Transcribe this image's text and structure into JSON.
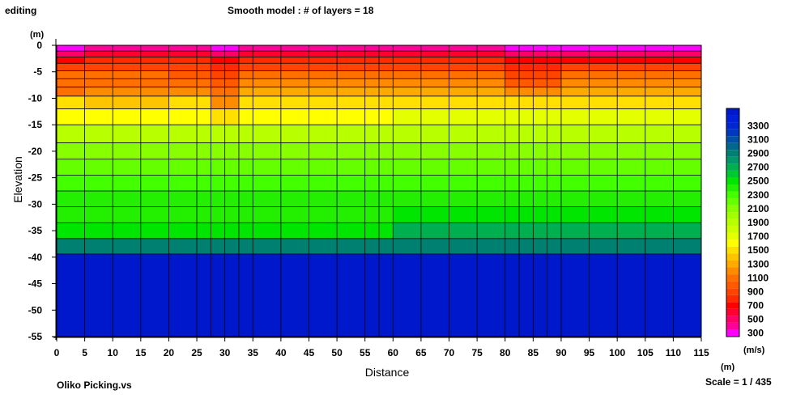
{
  "header": {
    "status": "editing",
    "title": "Smooth model : # of layers = 18"
  },
  "footer": {
    "file_name": "Oliko Picking.vs",
    "scale": "Scale = 1 / 435"
  },
  "chart_data": {
    "type": "heatmap",
    "title": "Smooth model : # of layers = 18",
    "xlabel": "Distance",
    "ylabel": "Elevation",
    "y_unit_label": "(m)",
    "x_unit_label": "(m)",
    "xlim": [
      0,
      115
    ],
    "ylim": [
      -55,
      0
    ],
    "x_ticks": [
      0,
      5,
      10,
      15,
      20,
      25,
      30,
      35,
      40,
      45,
      50,
      55,
      60,
      65,
      70,
      75,
      80,
      85,
      90,
      95,
      100,
      105,
      110,
      115
    ],
    "y_ticks": [
      0,
      -5,
      -10,
      -15,
      -20,
      -25,
      -30,
      -35,
      -40,
      -45,
      -50,
      -55
    ],
    "grid": true,
    "node_x": [
      0,
      5,
      10,
      15,
      20,
      25,
      27.5,
      30,
      32.5,
      35,
      40,
      45,
      50,
      55,
      57.5,
      60,
      65,
      70,
      75,
      80,
      82.5,
      85,
      87.5,
      90,
      95,
      100,
      105,
      110,
      115
    ],
    "layer_depths": [
      0,
      -1.1,
      -2.2,
      -3.4,
      -4.8,
      -6.3,
      -7.9,
      -9.6,
      -12,
      -15,
      -18.4,
      -21.5,
      -24.5,
      -27.5,
      -30.5,
      -33.5,
      -36.5,
      -39.4,
      -55
    ],
    "zones": [
      {
        "x_range": [
          0,
          5
        ],
        "layer_velocities": [
          300,
          500,
          700,
          900,
          1100,
          1100,
          1100,
          1500,
          1600,
          1900,
          2100,
          2200,
          2300,
          2400,
          2400,
          2500,
          2900,
          3500
        ]
      },
      {
        "x_range": [
          5,
          20
        ],
        "layer_velocities": [
          400,
          600,
          800,
          900,
          1100,
          1100,
          1200,
          1400,
          1600,
          1900,
          2100,
          2200,
          2300,
          2400,
          2400,
          2500,
          2900,
          3500
        ]
      },
      {
        "x_range": [
          20,
          27.5
        ],
        "layer_velocities": [
          400,
          600,
          800,
          900,
          1000,
          1100,
          1200,
          1500,
          1600,
          1900,
          2100,
          2200,
          2300,
          2400,
          2400,
          2500,
          2900,
          3500
        ]
      },
      {
        "x_range": [
          27.5,
          32.5
        ],
        "layer_velocities": [
          300,
          500,
          700,
          800,
          900,
          1000,
          1100,
          1200,
          1500,
          1900,
          2100,
          2200,
          2300,
          2400,
          2400,
          2500,
          2900,
          3500
        ]
      },
      {
        "x_range": [
          32.5,
          60
        ],
        "layer_velocities": [
          400,
          600,
          800,
          900,
          1100,
          1200,
          1300,
          1500,
          1600,
          1900,
          2100,
          2200,
          2300,
          2400,
          2400,
          2500,
          2900,
          3500
        ]
      },
      {
        "x_range": [
          60,
          80
        ],
        "layer_velocities": [
          400,
          600,
          800,
          900,
          1100,
          1200,
          1300,
          1500,
          1700,
          1900,
          2100,
          2200,
          2300,
          2400,
          2500,
          2700,
          2900,
          3500
        ]
      },
      {
        "x_range": [
          80,
          90
        ],
        "layer_velocities": [
          300,
          500,
          700,
          800,
          900,
          1000,
          1200,
          1500,
          1700,
          1900,
          2100,
          2200,
          2300,
          2400,
          2500,
          2700,
          2900,
          3500
        ]
      },
      {
        "x_range": [
          90,
          115
        ],
        "layer_velocities": [
          300,
          500,
          700,
          900,
          1100,
          1200,
          1300,
          1500,
          1700,
          1900,
          2100,
          2200,
          2300,
          2400,
          2500,
          2700,
          2900,
          3500
        ]
      }
    ],
    "colorbar": {
      "unit_label": "(m/s)",
      "labels": [
        3300,
        3100,
        2900,
        2700,
        2500,
        2300,
        2100,
        1900,
        1700,
        1500,
        1300,
        1100,
        900,
        700,
        500,
        300
      ],
      "colors": [
        {
          "v": 300,
          "c": "#ff00ff"
        },
        {
          "v": 400,
          "c": "#ff0099"
        },
        {
          "v": 500,
          "c": "#ff0066"
        },
        {
          "v": 600,
          "c": "#ff0033"
        },
        {
          "v": 700,
          "c": "#ff0000"
        },
        {
          "v": 800,
          "c": "#ff2a00"
        },
        {
          "v": 900,
          "c": "#ff4400"
        },
        {
          "v": 1000,
          "c": "#ff5a00"
        },
        {
          "v": 1100,
          "c": "#ff7000"
        },
        {
          "v": 1200,
          "c": "#ff8c00"
        },
        {
          "v": 1300,
          "c": "#ffaa00"
        },
        {
          "v": 1400,
          "c": "#ffc400"
        },
        {
          "v": 1500,
          "c": "#ffe000"
        },
        {
          "v": 1600,
          "c": "#ffff00"
        },
        {
          "v": 1700,
          "c": "#e4ff00"
        },
        {
          "v": 1800,
          "c": "#ccff00"
        },
        {
          "v": 1900,
          "c": "#b8ff00"
        },
        {
          "v": 2000,
          "c": "#a2ff00"
        },
        {
          "v": 2100,
          "c": "#88ff00"
        },
        {
          "v": 2200,
          "c": "#66ff00"
        },
        {
          "v": 2300,
          "c": "#44ff00"
        },
        {
          "v": 2400,
          "c": "#22f000"
        },
        {
          "v": 2500,
          "c": "#00e600"
        },
        {
          "v": 2600,
          "c": "#00c830"
        },
        {
          "v": 2700,
          "c": "#00b050"
        },
        {
          "v": 2800,
          "c": "#009868"
        },
        {
          "v": 2900,
          "c": "#008070"
        },
        {
          "v": 3000,
          "c": "#00688a"
        },
        {
          "v": 3100,
          "c": "#0050a8"
        },
        {
          "v": 3200,
          "c": "#0038c0"
        },
        {
          "v": 3300,
          "c": "#0026d0"
        },
        {
          "v": 3400,
          "c": "#001fd8"
        },
        {
          "v": 3500,
          "c": "#0018cc"
        }
      ]
    }
  }
}
